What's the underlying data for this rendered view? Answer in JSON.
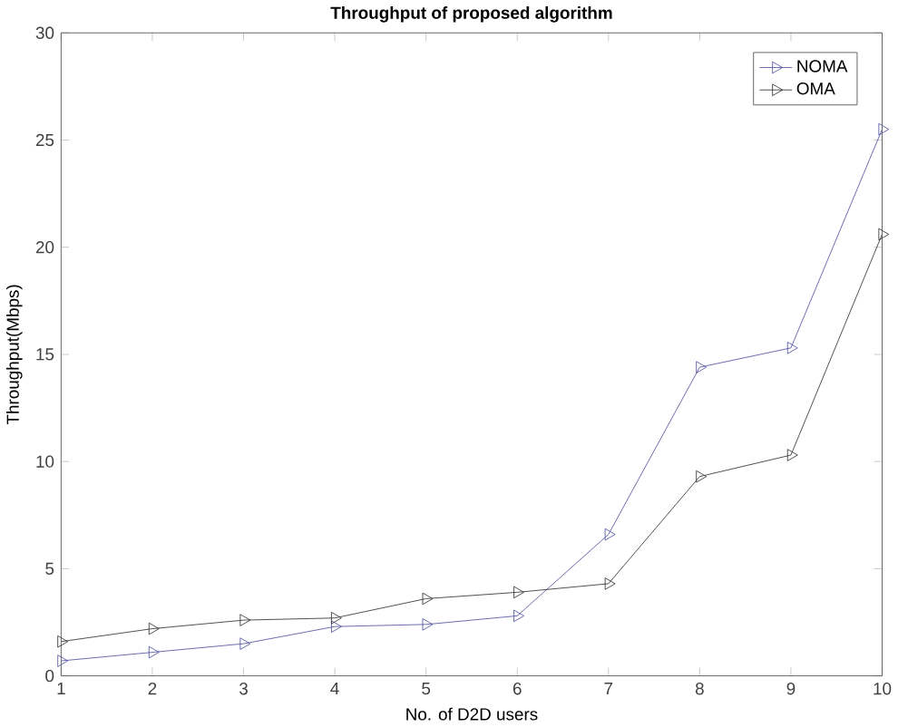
{
  "chart_data": {
    "type": "line",
    "title": "Throughput of proposed algorithm",
    "xlabel": "No. of D2D users",
    "ylabel": "Throughput(Mbps)",
    "x": [
      1,
      2,
      3,
      4,
      5,
      6,
      7,
      8,
      9,
      10
    ],
    "series": [
      {
        "name": "NOMA",
        "color": "#5050a0",
        "values": [
          0.7,
          1.1,
          1.5,
          2.3,
          2.4,
          2.8,
          6.6,
          14.4,
          15.3,
          25.5
        ]
      },
      {
        "name": "OMA",
        "color": "#303030",
        "values": [
          1.6,
          2.2,
          2.6,
          2.7,
          3.6,
          3.9,
          4.3,
          9.3,
          10.3,
          20.6
        ]
      }
    ],
    "xlim": [
      1,
      10
    ],
    "xticks": [
      1,
      2,
      3,
      4,
      5,
      6,
      7,
      8,
      9,
      10
    ],
    "ylim": [
      0,
      30
    ],
    "yticks": [
      0,
      5,
      10,
      15,
      20,
      25,
      30
    ],
    "legend": "top right",
    "marker": "triangle",
    "line_style": "solid",
    "grid": false
  }
}
